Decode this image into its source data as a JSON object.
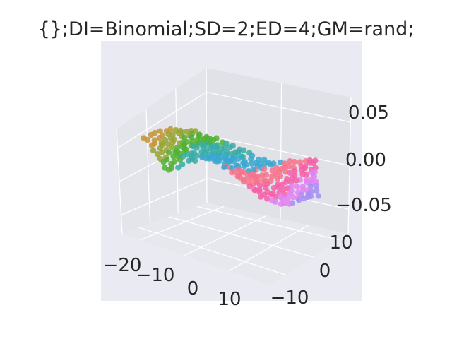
{
  "chart_data": {
    "type": "scatter",
    "projection": "3d",
    "title": "{};DI=Binomial;SD=2;ED=4;GM=rand;",
    "xlabel": "",
    "ylabel": "",
    "zlabel": "",
    "grid": true,
    "legend": "none",
    "xlim": [
      -25,
      18
    ],
    "ylim": [
      -15,
      18
    ],
    "zlim": [
      -0.06,
      0.07
    ],
    "x_ticks": [
      "−20",
      "−10",
      "0",
      "10"
    ],
    "y_ticks": [
      "−10",
      "0",
      "10"
    ],
    "z_ticks": [
      "−0.05",
      "0.00",
      "0.05"
    ],
    "point_hues": "continuous rainbow (husl) colouring along the manifold",
    "note": "Points form a wavy 2D sheet (a Swiss-roll-like strip) lying near z = 0"
  },
  "colors": {
    "panel_bg": "#eaeaf2",
    "pane_back": "#e3e3ea",
    "pane_side": "#dedee6",
    "pane_floor": "#e6e6ed",
    "grid": "#ffffff",
    "text": "#262626",
    "palette": [
      "#f77189",
      "#f45fa8",
      "#e07ff2",
      "#a58cf5",
      "#36ada4",
      "#39a7d0",
      "#50b131",
      "#97a431",
      "#c39532"
    ]
  }
}
